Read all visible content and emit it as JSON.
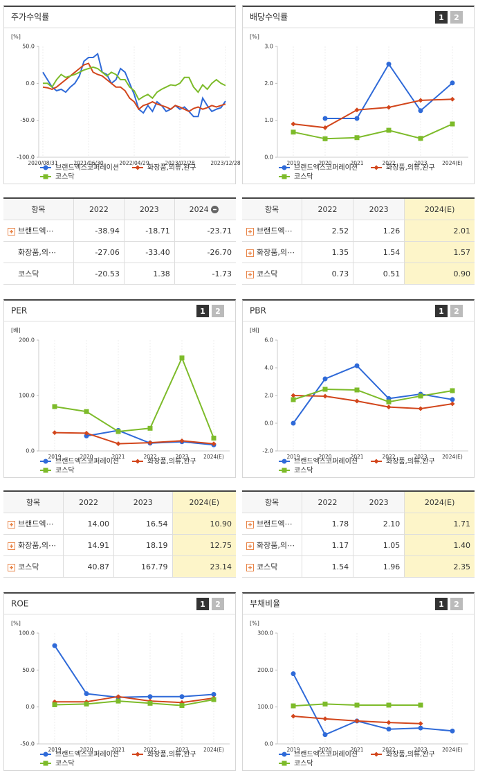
{
  "chart_data": [
    {
      "type": "line",
      "title": "주가수익률",
      "unit_label": "[%]",
      "markers": false,
      "categories": [
        "2020/08/31",
        null,
        null,
        null,
        null,
        null,
        null,
        null,
        null,
        null,
        "2021/06/30",
        null,
        null,
        null,
        null,
        null,
        null,
        null,
        null,
        null,
        "2022/04/29",
        null,
        null,
        null,
        null,
        null,
        null,
        null,
        null,
        null,
        "2023/02/28",
        null,
        null,
        null,
        null,
        null,
        null,
        null,
        null,
        null,
        "2023/12/28"
      ],
      "ylim": [
        -100,
        50
      ],
      "yticks": [
        {
          "value": -100,
          "label": "-100.0"
        },
        {
          "value": -50,
          "label": "-50.0"
        },
        {
          "value": 0,
          "label": "0.0"
        },
        {
          "value": 50,
          "label": "50.0"
        }
      ],
      "series": [
        {
          "name": "브랜드엑스코퍼레이션",
          "color": "#2f6ad8",
          "marker": "circle",
          "values": [
            15,
            5,
            -5,
            -10,
            -8,
            -12,
            -5,
            0,
            10,
            30,
            35,
            35,
            40,
            15,
            12,
            0,
            5,
            20,
            15,
            0,
            -15,
            -35,
            -40,
            -30,
            -38,
            -25,
            -30,
            -38,
            -35,
            -30,
            -35,
            -32,
            -38,
            -45,
            -45,
            -20,
            -30,
            -38,
            -35,
            -33,
            -24
          ]
        },
        {
          "name": "화장품,의류,완구",
          "color": "#d2461c",
          "marker": "diamond",
          "values": [
            -5,
            -6,
            -8,
            -5,
            0,
            5,
            10,
            15,
            20,
            25,
            27,
            15,
            12,
            10,
            5,
            0,
            -5,
            -5,
            -10,
            -20,
            -25,
            -35,
            -30,
            -28,
            -25,
            -28,
            -30,
            -32,
            -35,
            -30,
            -32,
            -35,
            -38,
            -34,
            -32,
            -35,
            -33,
            -30,
            -32,
            -30,
            -28
          ]
        },
        {
          "name": "코스닥",
          "color": "#7dbb2a",
          "marker": "square",
          "values": [
            0,
            0,
            -5,
            5,
            12,
            8,
            10,
            12,
            15,
            18,
            20,
            22,
            20,
            15,
            10,
            15,
            12,
            5,
            5,
            -5,
            -10,
            -22,
            -18,
            -15,
            -20,
            -12,
            -8,
            -5,
            -2,
            -3,
            0,
            8,
            8,
            -5,
            -12,
            -2,
            -8,
            0,
            5,
            0,
            -3
          ]
        }
      ]
    },
    {
      "type": "line",
      "title": "배당수익률",
      "unit_label": "[%]",
      "markers": true,
      "buttons": [
        "1",
        "2"
      ],
      "categories": [
        "2019",
        "2020",
        "2021",
        "2022",
        "2023",
        "2024(E)"
      ],
      "ylim": [
        0,
        3
      ],
      "yticks": [
        {
          "value": 0,
          "label": "0.0"
        },
        {
          "value": 1,
          "label": "1.0"
        },
        {
          "value": 2,
          "label": "2.0"
        },
        {
          "value": 3,
          "label": "3.0"
        }
      ],
      "series": [
        {
          "name": "브랜드엑스코퍼레이션",
          "color": "#2f6ad8",
          "marker": "circle",
          "values": [
            null,
            1.05,
            1.05,
            2.52,
            1.26,
            2.01
          ]
        },
        {
          "name": "화장품,의류,완구",
          "color": "#d2461c",
          "marker": "diamond",
          "values": [
            0.9,
            0.8,
            1.28,
            1.35,
            1.54,
            1.57
          ]
        },
        {
          "name": "코스닥",
          "color": "#7dbb2a",
          "marker": "square",
          "values": [
            0.68,
            0.5,
            0.53,
            0.73,
            0.51,
            0.9
          ]
        }
      ]
    },
    {
      "type": "line",
      "title": "PER",
      "unit_label": "[배]",
      "markers": true,
      "buttons": [
        "1",
        "2"
      ],
      "categories": [
        "2019",
        "2020",
        "2021",
        "2022",
        "2023",
        "2024(E)"
      ],
      "ylim": [
        0,
        200
      ],
      "yticks": [
        {
          "value": 0,
          "label": "0.0"
        },
        {
          "value": 100,
          "label": "100.0"
        },
        {
          "value": 200,
          "label": "200.0"
        }
      ],
      "series": [
        {
          "name": "브랜드엑스코퍼레이션",
          "color": "#2f6ad8",
          "marker": "circle",
          "values": [
            null,
            27,
            37,
            14,
            16.54,
            10.9
          ]
        },
        {
          "name": "화장품,의류,완구",
          "color": "#d2461c",
          "marker": "diamond",
          "values": [
            33,
            32,
            13,
            14.91,
            18.19,
            12.75
          ]
        },
        {
          "name": "코스닥",
          "color": "#7dbb2a",
          "marker": "square",
          "values": [
            80,
            71,
            35,
            40.87,
            167.79,
            23.14
          ]
        }
      ]
    },
    {
      "type": "line",
      "title": "PBR",
      "unit_label": "[배]",
      "markers": true,
      "buttons": [
        "1",
        "2"
      ],
      "categories": [
        "2019",
        "2020",
        "2021",
        "2022",
        "2023",
        "2024(E)"
      ],
      "ylim": [
        -2,
        6
      ],
      "yticks": [
        {
          "value": -2,
          "label": "-2.0"
        },
        {
          "value": 0,
          "label": "0.0"
        },
        {
          "value": 2,
          "label": "2.0"
        },
        {
          "value": 4,
          "label": "4.0"
        },
        {
          "value": 6,
          "label": "6.0"
        }
      ],
      "series": [
        {
          "name": "브랜드엑스코퍼레이션",
          "color": "#2f6ad8",
          "marker": "circle",
          "values": [
            0,
            3.2,
            4.15,
            1.78,
            2.1,
            1.71
          ]
        },
        {
          "name": "화장품,의류,완구",
          "color": "#d2461c",
          "marker": "diamond",
          "values": [
            2,
            1.95,
            1.6,
            1.17,
            1.05,
            1.4
          ]
        },
        {
          "name": "코스닥",
          "color": "#7dbb2a",
          "marker": "square",
          "values": [
            1.7,
            2.45,
            2.4,
            1.54,
            1.96,
            2.35
          ]
        }
      ]
    },
    {
      "type": "line",
      "title": "ROE",
      "unit_label": "[%]",
      "markers": true,
      "buttons": [
        "1",
        "2"
      ],
      "categories": [
        "2019",
        "2020",
        "2021",
        "2022",
        "2023",
        "2024(E)"
      ],
      "ylim": [
        -50,
        100
      ],
      "yticks": [
        {
          "value": -50,
          "label": "-50.0"
        },
        {
          "value": 0,
          "label": "0.0"
        },
        {
          "value": 50,
          "label": "50.0"
        },
        {
          "value": 100,
          "label": "100.0"
        }
      ],
      "series": [
        {
          "name": "브랜드엑스코퍼레이션",
          "color": "#2f6ad8",
          "marker": "circle",
          "values": [
            83,
            18,
            13,
            14,
            14,
            17
          ]
        },
        {
          "name": "화장품,의류,완구",
          "color": "#d2461c",
          "marker": "diamond",
          "values": [
            7,
            7,
            14,
            8,
            6,
            12
          ]
        },
        {
          "name": "코스닥",
          "color": "#7dbb2a",
          "marker": "square",
          "values": [
            3,
            4,
            8,
            5,
            2,
            10
          ]
        }
      ]
    },
    {
      "type": "line",
      "title": "부채비율",
      "unit_label": "[%]",
      "markers": true,
      "buttons": [
        "1",
        "2"
      ],
      "categories": [
        "2019",
        "2020",
        "2021",
        "2022",
        "2023",
        "2024(E)"
      ],
      "ylim": [
        0,
        300
      ],
      "yticks": [
        {
          "value": 0,
          "label": "0.0"
        },
        {
          "value": 100,
          "label": "100.0"
        },
        {
          "value": 200,
          "label": "200.0"
        },
        {
          "value": 300,
          "label": "300.0"
        }
      ],
      "series": [
        {
          "name": "브랜드엑스코퍼레이션",
          "color": "#2f6ad8",
          "marker": "circle",
          "values": [
            190,
            25,
            62,
            40,
            43,
            35
          ]
        },
        {
          "name": "화장품,의류,완구",
          "color": "#d2461c",
          "marker": "diamond",
          "values": [
            75,
            68,
            62,
            58,
            55,
            null
          ]
        },
        {
          "name": "코스닥",
          "color": "#7dbb2a",
          "marker": "square",
          "values": [
            103,
            108,
            105,
            105,
            105,
            null
          ]
        }
      ]
    }
  ],
  "tables": [
    {
      "header": [
        "항목",
        "2022",
        "2023",
        "2024"
      ],
      "collapse_icon": true,
      "highlight_last": false,
      "expandable": [
        true,
        false,
        false
      ],
      "rows": [
        [
          "브랜드엑⋯",
          "-38.94",
          "-18.71",
          "-23.71"
        ],
        [
          "화장품,의⋯",
          "-27.06",
          "-33.40",
          "-26.70"
        ],
        [
          "코스닥",
          "-20.53",
          "1.38",
          "-1.73"
        ]
      ]
    },
    {
      "header": [
        "항목",
        "2022",
        "2023",
        "2024(E)"
      ],
      "collapse_icon": false,
      "highlight_last": true,
      "expandable": [
        true,
        true,
        true
      ],
      "rows": [
        [
          "브랜드엑⋯",
          "2.52",
          "1.26",
          "2.01"
        ],
        [
          "화장품,의⋯",
          "1.35",
          "1.54",
          "1.57"
        ],
        [
          "코스닥",
          "0.73",
          "0.51",
          "0.90"
        ]
      ]
    },
    {
      "header": [
        "항목",
        "2022",
        "2023",
        "2024(E)"
      ],
      "collapse_icon": false,
      "highlight_last": true,
      "expandable": [
        true,
        true,
        true
      ],
      "rows": [
        [
          "브랜드엑⋯",
          "14.00",
          "16.54",
          "10.90"
        ],
        [
          "화장품,의⋯",
          "14.91",
          "18.19",
          "12.75"
        ],
        [
          "코스닥",
          "40.87",
          "167.79",
          "23.14"
        ]
      ]
    },
    {
      "header": [
        "항목",
        "2022",
        "2023",
        "2024(E)"
      ],
      "collapse_icon": false,
      "highlight_last": true,
      "expandable": [
        true,
        true,
        true
      ],
      "rows": [
        [
          "브랜드엑⋯",
          "1.78",
          "2.10",
          "1.71"
        ],
        [
          "화장품,의⋯",
          "1.17",
          "1.05",
          "1.40"
        ],
        [
          "코스닥",
          "1.54",
          "1.96",
          "2.35"
        ]
      ]
    }
  ]
}
